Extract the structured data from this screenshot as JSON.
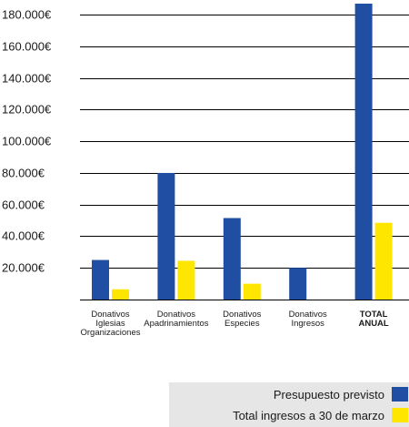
{
  "colors": {
    "budget": "#1f4ea3",
    "income": "#ffe600",
    "axis": "#000000"
  },
  "chart_data": {
    "type": "bar",
    "title": "",
    "xlabel": "",
    "ylabel": "",
    "ylim": [
      0,
      187000
    ],
    "yticks": [
      20000,
      40000,
      60000,
      80000,
      100000,
      120000,
      140000,
      160000,
      180000
    ],
    "ytick_labels": [
      "20.000€",
      "40.000€",
      "60.000€",
      "80.000€",
      "100.000€",
      "120.000€",
      "140.000€",
      "160.000€",
      "180.000€"
    ],
    "grid": true,
    "legend_position": "bottom-right",
    "categories": [
      {
        "lines": [
          "Donativos",
          "Iglesias",
          "Organizaciones"
        ],
        "bold": false
      },
      {
        "lines": [
          "Donativos",
          "Apadrinamientos"
        ],
        "bold": false
      },
      {
        "lines": [
          "Donativos",
          "Especies"
        ],
        "bold": false
      },
      {
        "lines": [
          "Donativos",
          "Ingresos"
        ],
        "bold": false
      },
      {
        "lines": [
          "TOTAL",
          "ANUAL"
        ],
        "bold": true
      }
    ],
    "series": [
      {
        "name": "Presupuesto previsto",
        "values": [
          25000,
          80000,
          51500,
          20000,
          187000
        ]
      },
      {
        "name": "Total ingresos a 30 de marzo",
        "values": [
          6500,
          24500,
          10000,
          0,
          48500
        ]
      }
    ]
  }
}
